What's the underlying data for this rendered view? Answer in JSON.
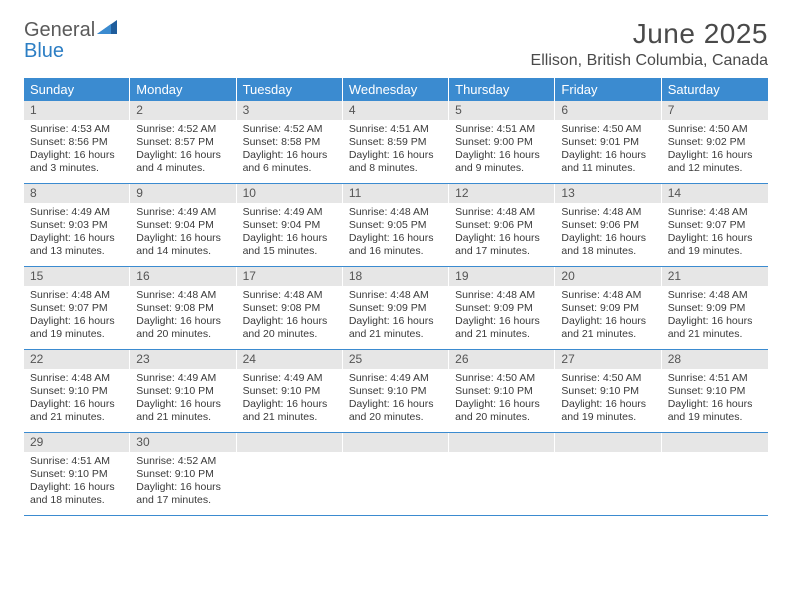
{
  "logo": {
    "word1": "General",
    "word2": "Blue"
  },
  "title": "June 2025",
  "location": "Ellison, British Columbia, Canada",
  "colors": {
    "header_bg": "#3b8bd0",
    "header_text": "#ffffff",
    "daynum_bg": "#e6e6e6",
    "daynum_text": "#555555",
    "border": "#3b8bd0",
    "logo_gray": "#5a5a5a",
    "logo_blue": "#2c7ec4",
    "body_text": "#3a3a3a"
  },
  "day_names": [
    "Sunday",
    "Monday",
    "Tuesday",
    "Wednesday",
    "Thursday",
    "Friday",
    "Saturday"
  ],
  "weeks": [
    [
      {
        "n": "1",
        "sunrise": "Sunrise: 4:53 AM",
        "sunset": "Sunset: 8:56 PM",
        "d1": "Daylight: 16 hours",
        "d2": "and 3 minutes."
      },
      {
        "n": "2",
        "sunrise": "Sunrise: 4:52 AM",
        "sunset": "Sunset: 8:57 PM",
        "d1": "Daylight: 16 hours",
        "d2": "and 4 minutes."
      },
      {
        "n": "3",
        "sunrise": "Sunrise: 4:52 AM",
        "sunset": "Sunset: 8:58 PM",
        "d1": "Daylight: 16 hours",
        "d2": "and 6 minutes."
      },
      {
        "n": "4",
        "sunrise": "Sunrise: 4:51 AM",
        "sunset": "Sunset: 8:59 PM",
        "d1": "Daylight: 16 hours",
        "d2": "and 8 minutes."
      },
      {
        "n": "5",
        "sunrise": "Sunrise: 4:51 AM",
        "sunset": "Sunset: 9:00 PM",
        "d1": "Daylight: 16 hours",
        "d2": "and 9 minutes."
      },
      {
        "n": "6",
        "sunrise": "Sunrise: 4:50 AM",
        "sunset": "Sunset: 9:01 PM",
        "d1": "Daylight: 16 hours",
        "d2": "and 11 minutes."
      },
      {
        "n": "7",
        "sunrise": "Sunrise: 4:50 AM",
        "sunset": "Sunset: 9:02 PM",
        "d1": "Daylight: 16 hours",
        "d2": "and 12 minutes."
      }
    ],
    [
      {
        "n": "8",
        "sunrise": "Sunrise: 4:49 AM",
        "sunset": "Sunset: 9:03 PM",
        "d1": "Daylight: 16 hours",
        "d2": "and 13 minutes."
      },
      {
        "n": "9",
        "sunrise": "Sunrise: 4:49 AM",
        "sunset": "Sunset: 9:04 PM",
        "d1": "Daylight: 16 hours",
        "d2": "and 14 minutes."
      },
      {
        "n": "10",
        "sunrise": "Sunrise: 4:49 AM",
        "sunset": "Sunset: 9:04 PM",
        "d1": "Daylight: 16 hours",
        "d2": "and 15 minutes."
      },
      {
        "n": "11",
        "sunrise": "Sunrise: 4:48 AM",
        "sunset": "Sunset: 9:05 PM",
        "d1": "Daylight: 16 hours",
        "d2": "and 16 minutes."
      },
      {
        "n": "12",
        "sunrise": "Sunrise: 4:48 AM",
        "sunset": "Sunset: 9:06 PM",
        "d1": "Daylight: 16 hours",
        "d2": "and 17 minutes."
      },
      {
        "n": "13",
        "sunrise": "Sunrise: 4:48 AM",
        "sunset": "Sunset: 9:06 PM",
        "d1": "Daylight: 16 hours",
        "d2": "and 18 minutes."
      },
      {
        "n": "14",
        "sunrise": "Sunrise: 4:48 AM",
        "sunset": "Sunset: 9:07 PM",
        "d1": "Daylight: 16 hours",
        "d2": "and 19 minutes."
      }
    ],
    [
      {
        "n": "15",
        "sunrise": "Sunrise: 4:48 AM",
        "sunset": "Sunset: 9:07 PM",
        "d1": "Daylight: 16 hours",
        "d2": "and 19 minutes."
      },
      {
        "n": "16",
        "sunrise": "Sunrise: 4:48 AM",
        "sunset": "Sunset: 9:08 PM",
        "d1": "Daylight: 16 hours",
        "d2": "and 20 minutes."
      },
      {
        "n": "17",
        "sunrise": "Sunrise: 4:48 AM",
        "sunset": "Sunset: 9:08 PM",
        "d1": "Daylight: 16 hours",
        "d2": "and 20 minutes."
      },
      {
        "n": "18",
        "sunrise": "Sunrise: 4:48 AM",
        "sunset": "Sunset: 9:09 PM",
        "d1": "Daylight: 16 hours",
        "d2": "and 21 minutes."
      },
      {
        "n": "19",
        "sunrise": "Sunrise: 4:48 AM",
        "sunset": "Sunset: 9:09 PM",
        "d1": "Daylight: 16 hours",
        "d2": "and 21 minutes."
      },
      {
        "n": "20",
        "sunrise": "Sunrise: 4:48 AM",
        "sunset": "Sunset: 9:09 PM",
        "d1": "Daylight: 16 hours",
        "d2": "and 21 minutes."
      },
      {
        "n": "21",
        "sunrise": "Sunrise: 4:48 AM",
        "sunset": "Sunset: 9:09 PM",
        "d1": "Daylight: 16 hours",
        "d2": "and 21 minutes."
      }
    ],
    [
      {
        "n": "22",
        "sunrise": "Sunrise: 4:48 AM",
        "sunset": "Sunset: 9:10 PM",
        "d1": "Daylight: 16 hours",
        "d2": "and 21 minutes."
      },
      {
        "n": "23",
        "sunrise": "Sunrise: 4:49 AM",
        "sunset": "Sunset: 9:10 PM",
        "d1": "Daylight: 16 hours",
        "d2": "and 21 minutes."
      },
      {
        "n": "24",
        "sunrise": "Sunrise: 4:49 AM",
        "sunset": "Sunset: 9:10 PM",
        "d1": "Daylight: 16 hours",
        "d2": "and 21 minutes."
      },
      {
        "n": "25",
        "sunrise": "Sunrise: 4:49 AM",
        "sunset": "Sunset: 9:10 PM",
        "d1": "Daylight: 16 hours",
        "d2": "and 20 minutes."
      },
      {
        "n": "26",
        "sunrise": "Sunrise: 4:50 AM",
        "sunset": "Sunset: 9:10 PM",
        "d1": "Daylight: 16 hours",
        "d2": "and 20 minutes."
      },
      {
        "n": "27",
        "sunrise": "Sunrise: 4:50 AM",
        "sunset": "Sunset: 9:10 PM",
        "d1": "Daylight: 16 hours",
        "d2": "and 19 minutes."
      },
      {
        "n": "28",
        "sunrise": "Sunrise: 4:51 AM",
        "sunset": "Sunset: 9:10 PM",
        "d1": "Daylight: 16 hours",
        "d2": "and 19 minutes."
      }
    ],
    [
      {
        "n": "29",
        "sunrise": "Sunrise: 4:51 AM",
        "sunset": "Sunset: 9:10 PM",
        "d1": "Daylight: 16 hours",
        "d2": "and 18 minutes."
      },
      {
        "n": "30",
        "sunrise": "Sunrise: 4:52 AM",
        "sunset": "Sunset: 9:10 PM",
        "d1": "Daylight: 16 hours",
        "d2": "and 17 minutes."
      },
      {
        "empty": true
      },
      {
        "empty": true
      },
      {
        "empty": true
      },
      {
        "empty": true
      },
      {
        "empty": true
      }
    ]
  ]
}
